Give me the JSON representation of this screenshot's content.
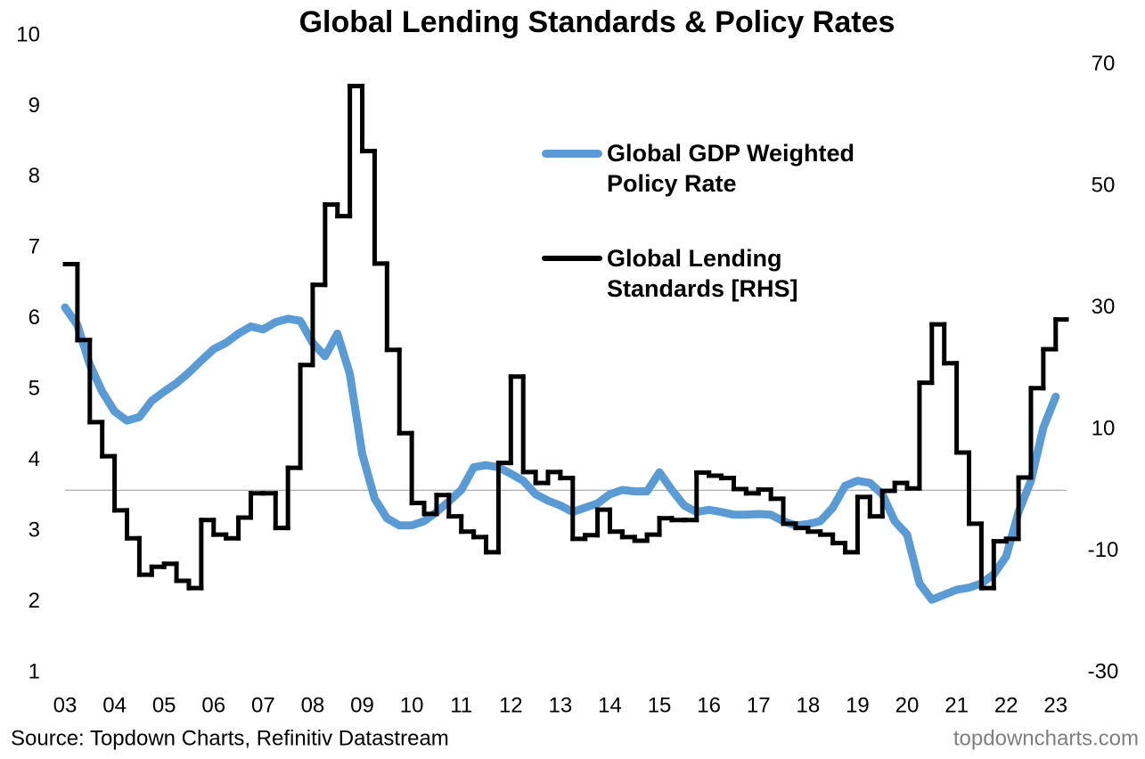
{
  "chart_data": {
    "type": "line",
    "title": "Global Lending Standards & Policy Rates",
    "source": "Source: Topdown Charts, Refinitiv Datastream",
    "watermark": "topdowncharts.com",
    "legend": "upper right",
    "grid": false,
    "hlines": [
      {
        "axis": "y2",
        "value": 0,
        "color": "#a6a6a6"
      }
    ],
    "xlim": [
      2.91,
      23.22
    ],
    "xticks": [
      {
        "value": 3,
        "label": "03"
      },
      {
        "value": 4,
        "label": "04"
      },
      {
        "value": 5,
        "label": "05"
      },
      {
        "value": 6,
        "label": "06"
      },
      {
        "value": 7,
        "label": "07"
      },
      {
        "value": 8,
        "label": "08"
      },
      {
        "value": 9,
        "label": "09"
      },
      10,
      11,
      12,
      13,
      14,
      15,
      16,
      17,
      18,
      19,
      20,
      21,
      22,
      23
    ],
    "ylim": [
      1,
      10
    ],
    "yticks": [
      1,
      2,
      3,
      4,
      5,
      6,
      7,
      8,
      9,
      10
    ],
    "y2lim": [
      -30,
      74.8
    ],
    "y2ticks": [
      -30,
      -10,
      10,
      30,
      50,
      70
    ],
    "x": [
      3,
      3.25,
      3.5,
      3.75,
      4,
      4.25,
      4.5,
      4.75,
      5,
      5.25,
      5.5,
      5.75,
      6,
      6.25,
      6.5,
      6.75,
      7,
      7.25,
      7.5,
      7.75,
      8,
      8.25,
      8.5,
      8.75,
      9,
      9.25,
      9.5,
      9.75,
      10,
      10.25,
      10.5,
      10.75,
      11,
      11.25,
      11.5,
      11.75,
      12,
      12.25,
      12.5,
      12.75,
      13,
      13.25,
      13.5,
      13.75,
      14,
      14.25,
      14.5,
      14.75,
      15,
      15.25,
      15.5,
      15.75,
      16,
      16.25,
      16.5,
      16.75,
      17,
      17.25,
      17.5,
      17.75,
      18,
      18.25,
      18.5,
      18.75,
      19,
      19.25,
      19.5,
      19.75,
      20,
      20.25,
      20.5,
      20.75,
      21,
      21.25,
      21.5,
      21.75,
      22,
      22.25,
      22.5,
      22.75,
      23
    ],
    "series": [
      {
        "name": "Global GDP Weighted Policy Rate",
        "color": "#5b9bd5",
        "style": "smooth",
        "values": [
          6.16,
          5.91,
          5.35,
          4.97,
          4.69,
          4.56,
          4.61,
          4.84,
          4.97,
          5.09,
          5.24,
          5.41,
          5.57,
          5.66,
          5.79,
          5.89,
          5.85,
          5.95,
          6.0,
          5.97,
          5.66,
          5.47,
          5.79,
          5.22,
          4.09,
          3.46,
          3.18,
          3.08,
          3.08,
          3.14,
          3.27,
          3.42,
          3.58,
          3.9,
          3.93,
          3.9,
          3.81,
          3.71,
          3.52,
          3.43,
          3.36,
          3.27,
          3.33,
          3.39,
          3.52,
          3.58,
          3.56,
          3.56,
          3.83,
          3.58,
          3.36,
          3.27,
          3.3,
          3.27,
          3.23,
          3.23,
          3.24,
          3.23,
          3.14,
          3.08,
          3.1,
          3.14,
          3.33,
          3.64,
          3.71,
          3.68,
          3.52,
          3.14,
          2.95,
          2.26,
          2.03,
          2.1,
          2.17,
          2.2,
          2.26,
          2.39,
          2.64,
          3.27,
          3.71,
          4.46,
          4.9
        ]
      },
      {
        "name": "Global Lending Standards [RHS]",
        "color": "#000000",
        "axis": "y2",
        "style": "step",
        "values": [
          37.2,
          24.7,
          11.2,
          5.6,
          -3.3,
          -7.9,
          -13.9,
          -12.6,
          -12.1,
          -14.9,
          -16.1,
          -4.9,
          -7.3,
          -7.9,
          -4.5,
          -0.5,
          -0.5,
          -6.2,
          3.7,
          20.6,
          33.8,
          47.0,
          45.1,
          66.5,
          55.8,
          37.3,
          23.1,
          9.4,
          -2.1,
          -3.9,
          -0.8,
          -4.3,
          -6.8,
          -7.7,
          -10.2,
          4.5,
          18.7,
          3.0,
          1.2,
          3.0,
          2.0,
          -8.0,
          -7.4,
          -3.2,
          -6.8,
          -7.7,
          -8.3,
          -7.3,
          -4.6,
          -4.9,
          -4.9,
          2.9,
          2.4,
          2.0,
          0.2,
          -0.5,
          0.1,
          -1.4,
          -5.5,
          -6.2,
          -6.8,
          -7.3,
          -8.7,
          -10.2,
          -1.1,
          -4.3,
          -0.1,
          1.2,
          0.3,
          17.7,
          27.3,
          20.9,
          6.2,
          -5.5,
          -16.1,
          -8.4,
          -8.0,
          2.1,
          16.8,
          23.2,
          28.1
        ]
      }
    ]
  }
}
